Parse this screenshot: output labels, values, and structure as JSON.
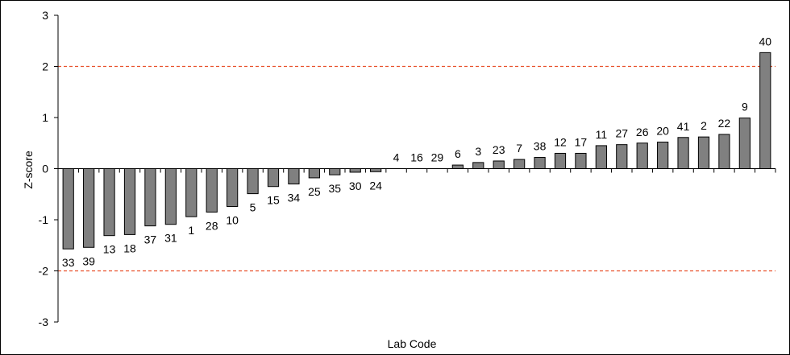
{
  "chart_data": {
    "type": "bar",
    "title": "",
    "xlabel": "Lab Code",
    "ylabel": "Z-score",
    "ylim": [
      -3,
      3
    ],
    "yticks": [
      -3,
      -2,
      -1,
      0,
      1,
      2,
      3
    ],
    "grid": false,
    "legend": "none",
    "reference_lines": [
      2,
      -2
    ],
    "colors": {
      "bar_fill": "#808080",
      "bar_stroke": "#000000",
      "reference_line": "#e8502a",
      "axis": "#000000",
      "border": "#000000"
    },
    "categories": [
      "33",
      "39",
      "13",
      "18",
      "37",
      "31",
      "1",
      "28",
      "10",
      "5",
      "15",
      "34",
      "25",
      "35",
      "30",
      "24",
      "4",
      "16",
      "29",
      "6",
      "3",
      "23",
      "7",
      "38",
      "12",
      "17",
      "11",
      "27",
      "26",
      "20",
      "41",
      "2",
      "22",
      "9",
      "40"
    ],
    "values": [
      -1.57,
      -1.54,
      -1.31,
      -1.29,
      -1.12,
      -1.09,
      -0.94,
      -0.85,
      -0.74,
      -0.49,
      -0.35,
      -0.3,
      -0.18,
      -0.12,
      -0.07,
      -0.06,
      0.0,
      0.0,
      0.0,
      0.07,
      0.12,
      0.15,
      0.18,
      0.22,
      0.3,
      0.3,
      0.45,
      0.47,
      0.5,
      0.52,
      0.61,
      0.62,
      0.67,
      0.99,
      2.27
    ]
  }
}
